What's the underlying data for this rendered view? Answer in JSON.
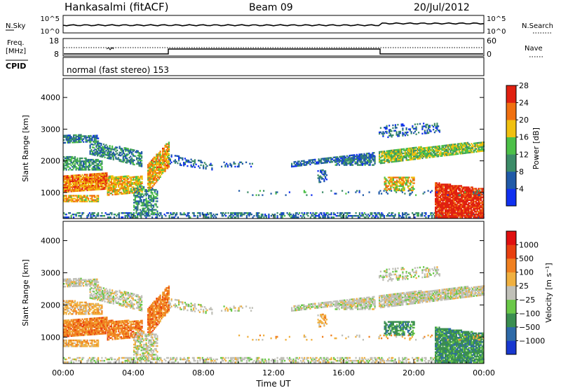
{
  "header": {
    "station": "Hankasalmi (fitACF)",
    "beam": "Beam 09",
    "date": "20/Jul/2012"
  },
  "noise_panel": {
    "left_label": "N.Sky",
    "left_ticks": [
      "10^5",
      "10^0"
    ],
    "right_label": "N.Search",
    "right_ticks": [
      "10^5",
      "10^0"
    ]
  },
  "freq_panel": {
    "left_label_1": "Freq.",
    "left_label_2": "[MHz]",
    "left_ticks": [
      "18",
      "8"
    ],
    "right_label": "Nave",
    "right_ticks": [
      "60",
      "0"
    ]
  },
  "cpid": {
    "label": "CPID",
    "mode": "normal (fast stereo) 153"
  },
  "chart_data": [
    {
      "type": "heatmap",
      "title": "Power",
      "ylabel": "Slant Range [km]",
      "xlabel": "Time UT",
      "ylim": [
        180,
        4600
      ],
      "yticks": [
        "1000",
        "2000",
        "3000",
        "4000"
      ],
      "xticks": [
        "00:00",
        "04:00",
        "08:00",
        "12:00",
        "16:00",
        "20:00",
        "00:00"
      ],
      "colorbar_label": "Power [dB]",
      "colorbar_ticks": [
        "4",
        "8",
        "12",
        "16",
        "20",
        "24",
        "28"
      ],
      "colors": [
        "#1030f0",
        "#205aa8",
        "#3c8c68",
        "#4cc048",
        "#f0c010",
        "#f07010",
        "#e02010"
      ]
    },
    {
      "type": "heatmap",
      "title": "Velocity",
      "ylabel": "Slant Range [km]",
      "xlabel": "Time UT",
      "ylim": [
        180,
        4600
      ],
      "yticks": [
        "1000",
        "2000",
        "3000",
        "4000"
      ],
      "xticks": [
        "00:00",
        "04:00",
        "08:00",
        "12:00",
        "16:00",
        "20:00",
        "00:00"
      ],
      "colorbar_label": "Velocity [m s⁻¹]",
      "colorbar_ticks": [
        "1000",
        "500",
        "100",
        "25",
        "−25",
        "−100",
        "−500",
        "−1000"
      ],
      "colors": [
        "#1838d0",
        "#2e6aa8",
        "#3a8e50",
        "#6ac848",
        "#c0c0b8",
        "#f0b040",
        "#f08020",
        "#e84010",
        "#e01010"
      ]
    }
  ]
}
